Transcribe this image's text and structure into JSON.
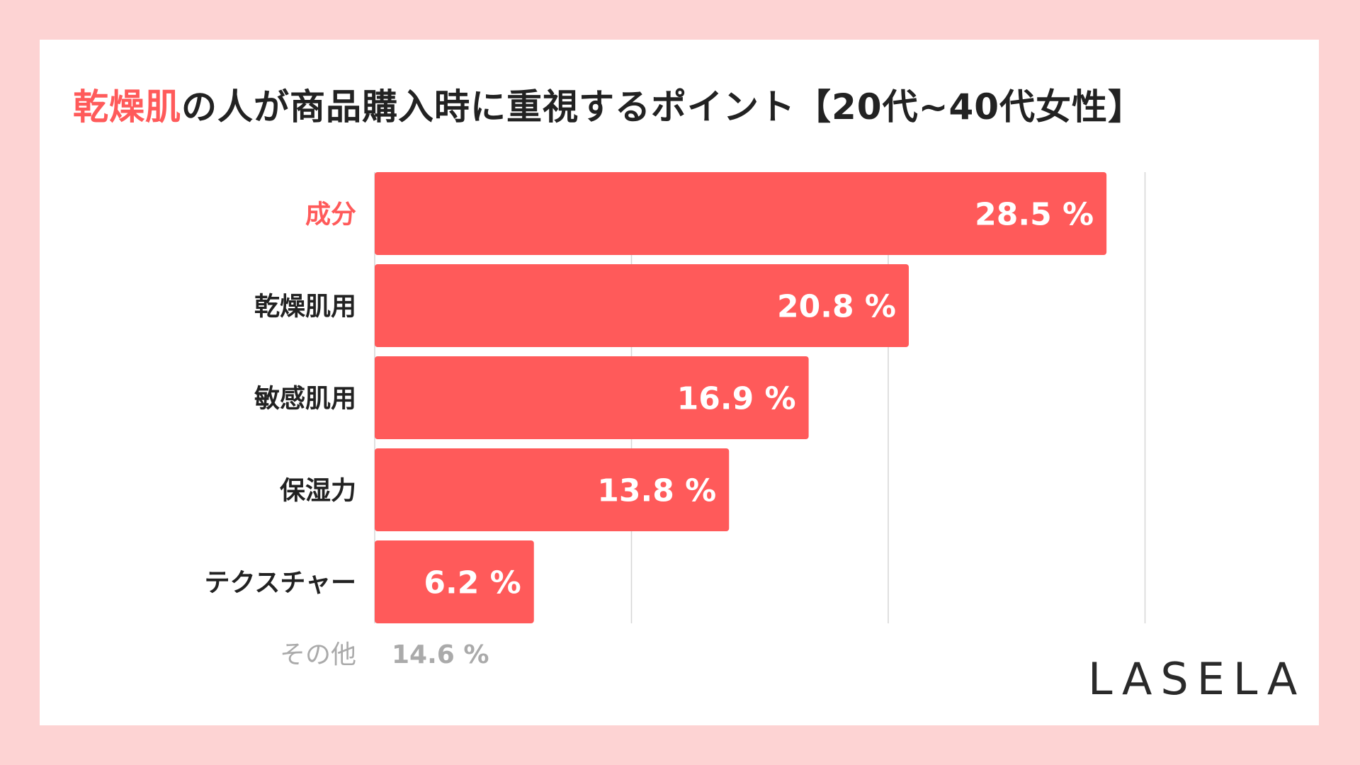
{
  "title": {
    "highlight": "乾燥肌",
    "rest": "の人が商品購入時に重視するポイント【20代~40代女性】"
  },
  "colors": {
    "bar": "#ff5a5a",
    "highlight_label": "#ff5a5a",
    "label": "#222222",
    "other": "#aaaaaa",
    "grid": "#d6d6d6",
    "background": "#fdd3d3"
  },
  "chart_data": {
    "type": "bar",
    "orientation": "horizontal",
    "categories": [
      "成分",
      "乾燥肌用",
      "敏感肌用",
      "保湿力",
      "テクスチャー"
    ],
    "values": [
      28.5,
      20.8,
      16.9,
      13.8,
      6.2
    ],
    "value_labels": [
      "28.5 %",
      "20.8 %",
      "16.9 %",
      "13.8 %",
      "6.2 %"
    ],
    "highlighted_category": "成分",
    "xlim": [
      0,
      30
    ],
    "gridlines": [
      10,
      20,
      30
    ],
    "other": {
      "label": "その他",
      "value": 14.6,
      "value_label": "14.6 %"
    }
  },
  "logo": "LASELA"
}
